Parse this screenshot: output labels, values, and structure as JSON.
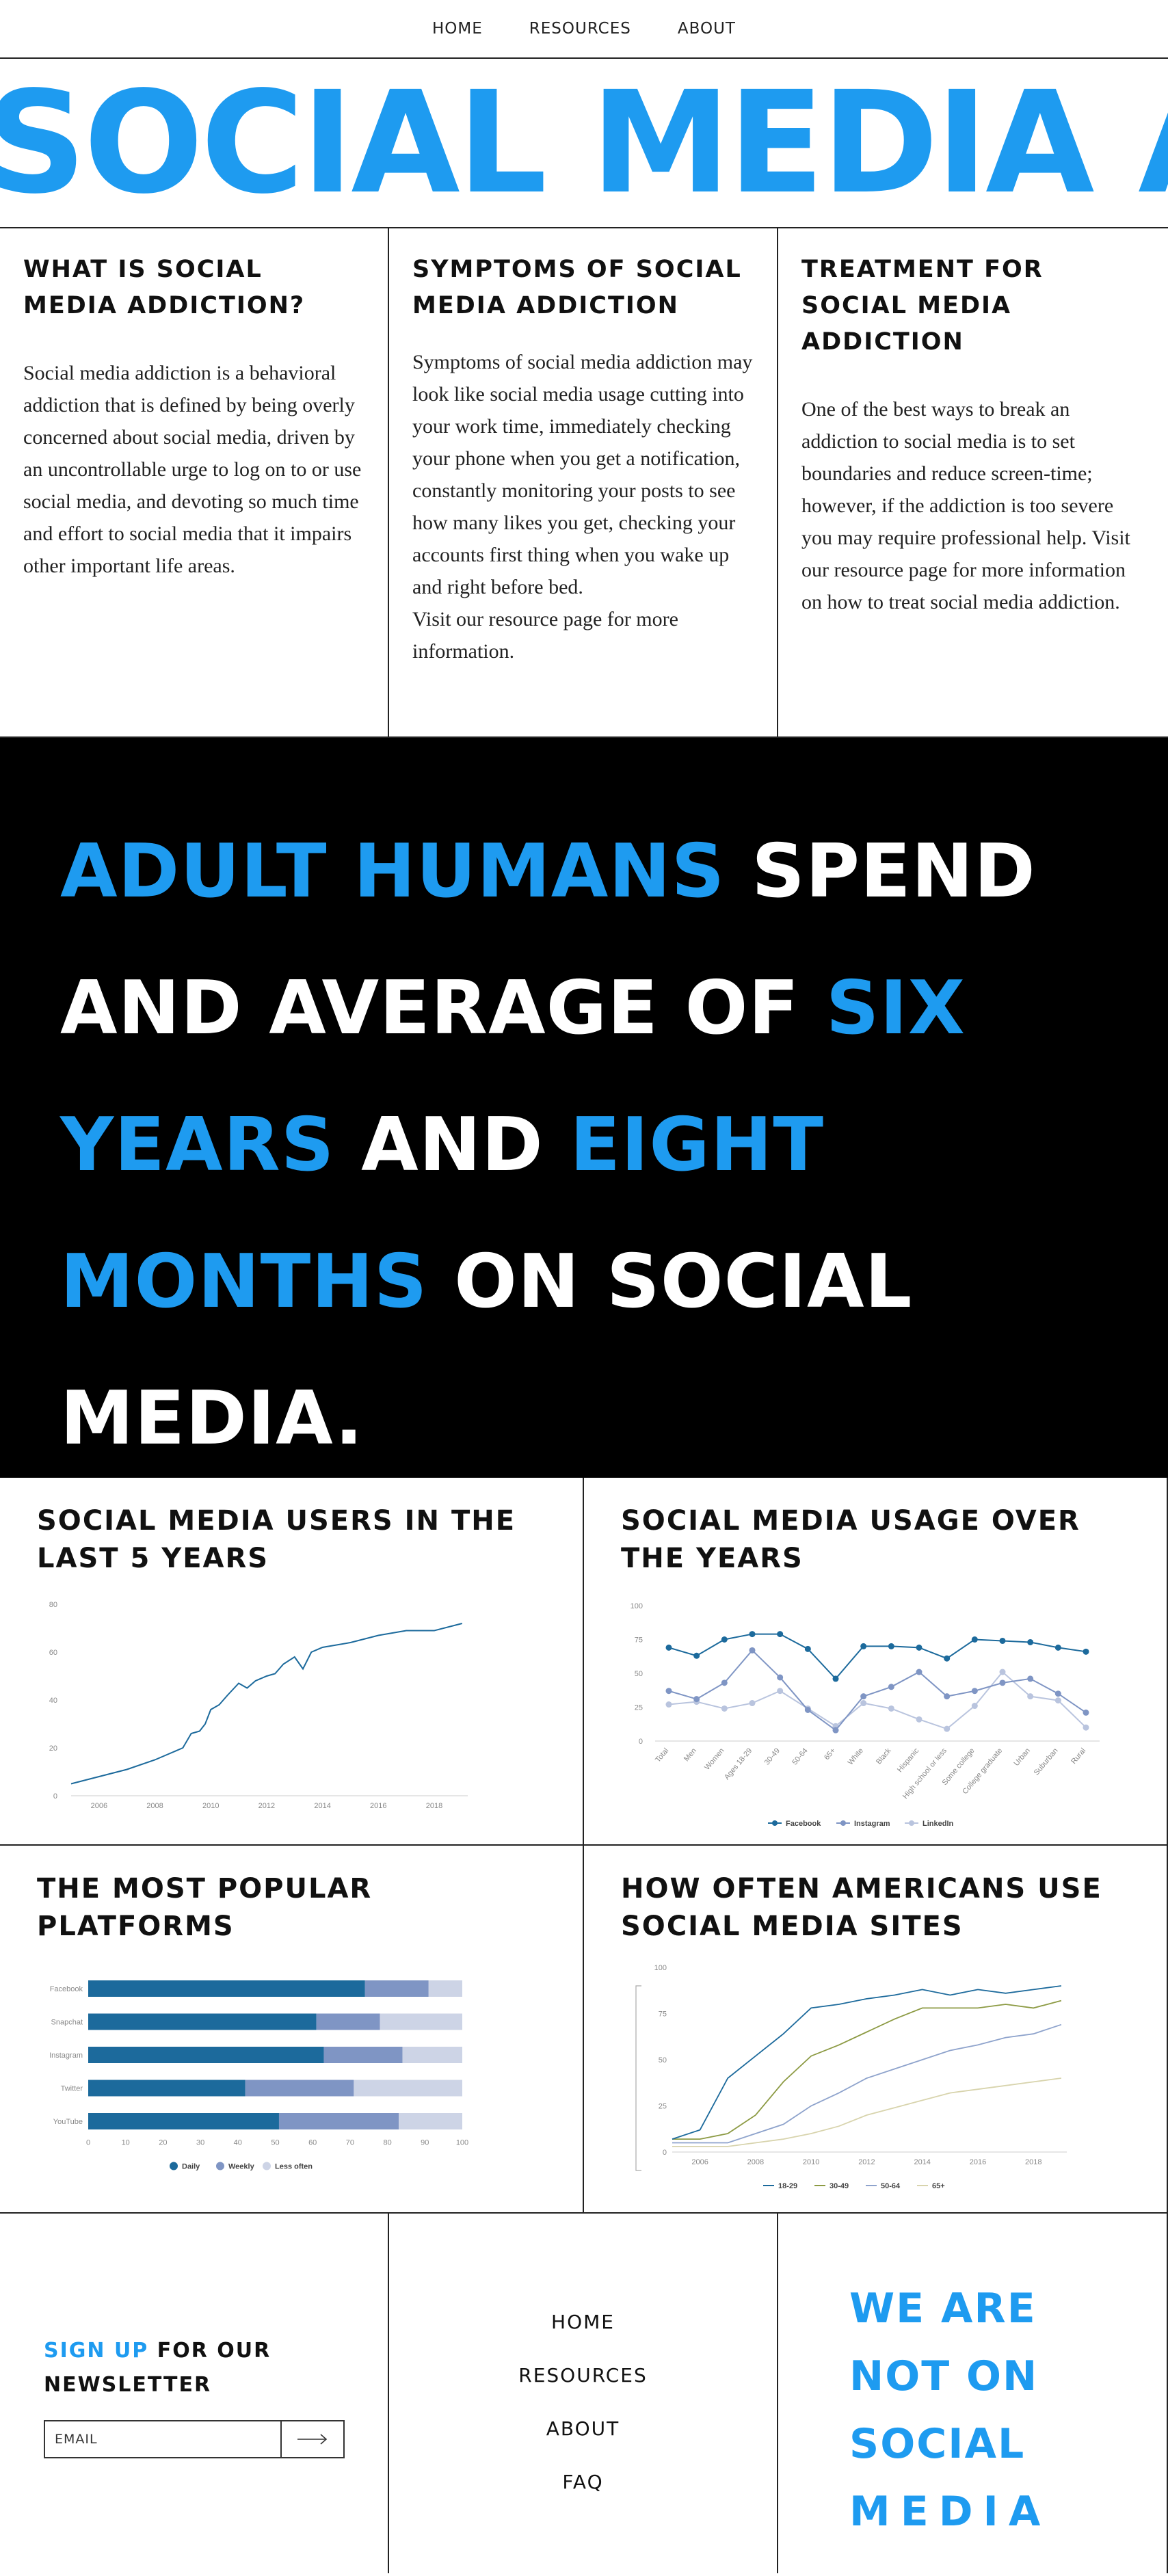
{
  "nav": {
    "items": [
      "HOME",
      "RESOURCES",
      "ABOUT"
    ]
  },
  "banner": {
    "text": "SOCIAL MEDIA A"
  },
  "info": [
    {
      "title": "WHAT IS SOCIAL MEDIA ADDICTION?",
      "body": "Social media addiction is a behavioral addiction that is defined by being overly concerned about social media, driven by an uncontrollable urge to log on to or use social media, and devoting so much time and effort to social media that it impairs other important life areas."
    },
    {
      "title": "SYMPTOMS OF SOCIAL MEDIA ADDICTION",
      "body": "Symptoms of social media addiction may look like social media usage cutting into your work time, immediately checking your phone when you get a notification, constantly monitoring your posts to see how many likes you get, checking your accounts first thing when you wake up and right before bed.",
      "body2": "Visit our resource page for more information."
    },
    {
      "title": "TREATMENT FOR SOCIAL MEDIA ADDICTION",
      "body": "One of the best ways to break an addiction to social media is to set boundaries and reduce screen-time; however, if the addiction is too severe you may require professional help. Visit our resource page for more information on how to treat social media addiction."
    }
  ],
  "statement": {
    "lines": [
      [
        {
          "t": "ADULT HUMANS ",
          "c": "blue"
        },
        {
          "t": "SPEND",
          "c": "white"
        }
      ],
      [
        {
          "t": "AND AVERAGE OF ",
          "c": "white"
        },
        {
          "t": "SIX",
          "c": "blue"
        }
      ],
      [
        {
          "t": "YEARS ",
          "c": "blue"
        },
        {
          "t": "AND ",
          "c": "white"
        },
        {
          "t": "EIGHT",
          "c": "blue"
        }
      ],
      [
        {
          "t": "MONTHS ",
          "c": "blue"
        },
        {
          "t": "ON SOCIAL",
          "c": "white"
        }
      ],
      [
        {
          "t": "MEDIA.",
          "c": "white"
        }
      ]
    ]
  },
  "charts": {
    "users_title": "SOCIAL MEDIA USERS IN THE LAST 5 YEARS",
    "usage_title": "SOCIAL MEDIA USAGE OVER THE YEARS",
    "platforms_title": "THE MOST POPULAR PLATFORMS",
    "often_title": "HOW OFTEN AMERICANS USE SOCIAL MEDIA SITES"
  },
  "chart_data": [
    {
      "type": "line",
      "title": "SOCIAL MEDIA USERS IN THE LAST 5 YEARS",
      "x": [
        2005,
        2006,
        2007,
        2008,
        2009,
        2009.3,
        2009.6,
        2009.8,
        2010,
        2010.3,
        2010.6,
        2011,
        2011.3,
        2011.6,
        2012,
        2012.3,
        2012.6,
        2013,
        2013.3,
        2013.6,
        2014,
        2015,
        2016,
        2017,
        2018,
        2019
      ],
      "values": [
        5,
        8,
        11,
        15,
        20,
        26,
        27,
        30,
        36,
        38,
        42,
        47,
        45,
        48,
        50,
        51,
        55,
        58,
        53,
        60,
        62,
        64,
        67,
        69,
        69,
        72
      ],
      "xticks": [
        2006,
        2008,
        2010,
        2012,
        2014,
        2016,
        2018
      ],
      "yticks": [
        0,
        20,
        40,
        60,
        80
      ],
      "ylim": [
        0,
        80
      ],
      "color": "#1c6a9c"
    },
    {
      "type": "line",
      "title": "SOCIAL MEDIA USAGE OVER THE YEARS",
      "categories": [
        "Total",
        "Men",
        "Women",
        "Ages 18-29",
        "30-49",
        "50-64",
        "65+",
        "White",
        "Black",
        "Hispanic",
        "High school or less",
        "Some college",
        "College graduate",
        "Urban",
        "Suburban",
        "Rural"
      ],
      "series": [
        {
          "name": "Facebook",
          "values": [
            69,
            63,
            75,
            79,
            79,
            68,
            46,
            70,
            70,
            69,
            61,
            75,
            74,
            73,
            69,
            66
          ],
          "color": "#1c6a9c"
        },
        {
          "name": "Instagram",
          "values": [
            37,
            31,
            43,
            67,
            47,
            23,
            8,
            33,
            40,
            51,
            33,
            37,
            43,
            46,
            35,
            21
          ],
          "color": "#7f95c4"
        },
        {
          "name": "LinkedIn",
          "values": [
            27,
            29,
            24,
            28,
            37,
            24,
            11,
            28,
            24,
            16,
            9,
            26,
            51,
            33,
            30,
            10
          ],
          "color": "#b9c4de"
        }
      ],
      "yticks": [
        0,
        25,
        50,
        75,
        100
      ],
      "ylim": [
        0,
        100
      ],
      "legend": "bottom"
    },
    {
      "type": "bar",
      "title": "THE MOST POPULAR PLATFORMS",
      "orientation": "horizontal",
      "stacked": true,
      "categories": [
        "Facebook",
        "Snapchat",
        "Instagram",
        "Twitter",
        "YouTube"
      ],
      "series": [
        {
          "name": "Daily",
          "values": [
            74,
            61,
            63,
            42,
            51
          ],
          "color": "#1c6a9c"
        },
        {
          "name": "Weekly",
          "values": [
            17,
            17,
            21,
            29,
            32
          ],
          "color": "#7f95c4"
        },
        {
          "name": "Less often",
          "values": [
            9,
            22,
            16,
            29,
            17
          ],
          "color": "#cdd4e6"
        }
      ],
      "xticks": [
        0,
        10,
        20,
        30,
        40,
        50,
        60,
        70,
        80,
        90,
        100
      ],
      "xlim": [
        0,
        100
      ],
      "legend": "bottom"
    },
    {
      "type": "line",
      "title": "HOW OFTEN AMERICANS USE SOCIAL MEDIA SITES",
      "x": [
        2005,
        2006,
        2007,
        2008,
        2009,
        2010,
        2011,
        2012,
        2013,
        2014,
        2015,
        2016,
        2017,
        2018,
        2019
      ],
      "series": [
        {
          "name": "18-29",
          "values": [
            7,
            12,
            40,
            52,
            64,
            78,
            80,
            83,
            85,
            88,
            85,
            88,
            86,
            88,
            90
          ],
          "color": "#1c6a9c"
        },
        {
          "name": "30-49",
          "values": [
            7,
            7,
            10,
            20,
            38,
            52,
            58,
            65,
            72,
            78,
            78,
            78,
            80,
            78,
            82
          ],
          "color": "#8c9a43"
        },
        {
          "name": "50-64",
          "values": [
            5,
            5,
            5,
            10,
            15,
            25,
            32,
            40,
            45,
            50,
            55,
            58,
            62,
            64,
            69
          ],
          "color": "#8ea3cc"
        },
        {
          "name": "65+",
          "values": [
            3,
            3,
            3,
            5,
            7,
            10,
            14,
            20,
            24,
            28,
            32,
            34,
            36,
            38,
            40
          ],
          "color": "#d8d4ad"
        }
      ],
      "xticks": [
        2006,
        2008,
        2010,
        2012,
        2014,
        2016,
        2018
      ],
      "yticks": [
        0,
        25,
        50,
        75,
        100
      ],
      "ylim": [
        0,
        100
      ],
      "legend": "bottom"
    }
  ],
  "footer": {
    "newsletter_highlight": "SIGN UP",
    "newsletter_rest": " FOR OUR",
    "newsletter_line2": "NEWSLETTER",
    "email_placeholder": "EMAIL",
    "links": [
      "HOME",
      "RESOURCES",
      "ABOUT",
      "FAQ"
    ],
    "slogan": [
      "WE ARE",
      "NOT ON",
      "SOCIAL",
      "MEDIA"
    ]
  },
  "colors": {
    "accent": "#1e9bf0",
    "dark_blue": "#1c6a9c"
  }
}
